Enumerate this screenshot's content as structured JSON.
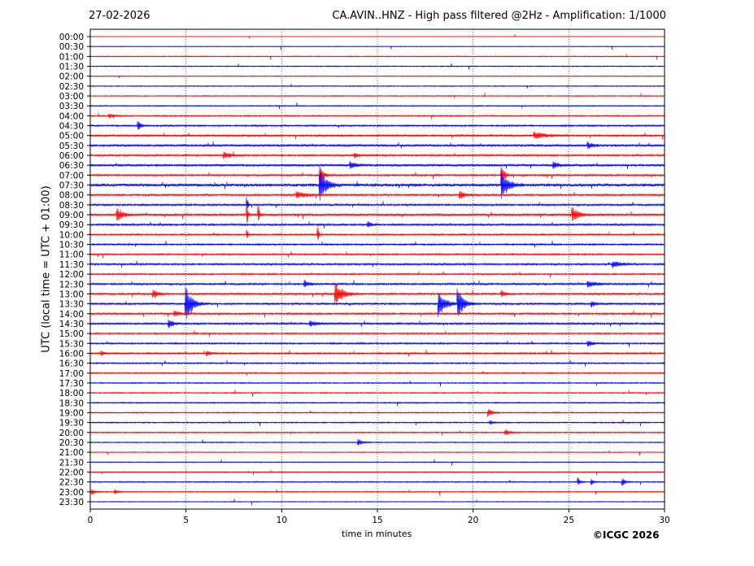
{
  "header": {
    "date": "27-02-2026",
    "title": "CA.AVIN..HNZ - High pass filtered @2Hz - Amplification: 1/1000"
  },
  "footer": {
    "copyright": "©ICGC 2026"
  },
  "chart_data": {
    "type": "line",
    "title": "CA.AVIN..HNZ - High pass filtered @2Hz - Amplification: 1/1000",
    "xlabel": "time in minutes",
    "ylabel": "UTC (local time = UTC + 01:00)",
    "xlim": [
      0,
      30
    ],
    "xticks": [
      "0",
      "5",
      "10",
      "15",
      "20",
      "25",
      "30"
    ],
    "grid": "vertical dotted at 5-minute intervals",
    "colors": [
      "#ff0000",
      "#0000ff"
    ],
    "traces": [
      "00:00",
      "00:30",
      "01:00",
      "01:30",
      "02:00",
      "02:30",
      "03:00",
      "03:30",
      "04:00",
      "04:30",
      "05:00",
      "05:30",
      "06:00",
      "06:30",
      "07:00",
      "07:30",
      "08:00",
      "08:30",
      "09:00",
      "09:30",
      "10:00",
      "10:30",
      "11:00",
      "11:30",
      "12:00",
      "12:30",
      "13:00",
      "13:30",
      "14:00",
      "14:30",
      "15:00",
      "15:30",
      "16:00",
      "16:30",
      "17:00",
      "17:30",
      "18:00",
      "18:30",
      "19:00",
      "19:30",
      "20:00",
      "20:30",
      "21:00",
      "21:30",
      "22:00",
      "22:30",
      "23:00",
      "23:30"
    ],
    "noise_level": [
      0.2,
      0.3,
      0.5,
      0.5,
      0.4,
      0.5,
      0.5,
      0.5,
      0.6,
      0.8,
      1,
      1.2,
      1,
      1.2,
      1,
      1.5,
      1,
      1,
      1.2,
      1,
      0.8,
      0.8,
      0.8,
      1,
      0.8,
      1,
      1,
      1,
      1,
      1,
      0.8,
      0.8,
      0.8,
      0.7,
      0.7,
      0.6,
      0.6,
      0.6,
      0.6,
      0.6,
      0.6,
      0.5,
      0.4,
      0.4,
      0.5,
      0.6,
      0.5,
      0.4
    ],
    "events": [
      {
        "trace": "04:00",
        "minute": 1.0,
        "amplitude": 3,
        "duration": 0.5
      },
      {
        "trace": "04:30",
        "minute": 2.5,
        "amplitude": 6,
        "duration": 0.3
      },
      {
        "trace": "05:00",
        "minute": 23.2,
        "amplitude": 5,
        "duration": 1
      },
      {
        "trace": "05:30",
        "minute": 26.0,
        "amplitude": 5,
        "duration": 0.4
      },
      {
        "trace": "06:00",
        "minute": 7.0,
        "amplitude": 4,
        "duration": 0.6
      },
      {
        "trace": "06:00",
        "minute": 13.8,
        "amplitude": 3,
        "duration": 0.4
      },
      {
        "trace": "06:30",
        "minute": 13.6,
        "amplitude": 5,
        "duration": 0.5
      },
      {
        "trace": "06:30",
        "minute": 24.2,
        "amplitude": 4,
        "duration": 0.5
      },
      {
        "trace": "07:00",
        "minute": 12.0,
        "amplitude": 12,
        "duration": 0.3
      },
      {
        "trace": "07:00",
        "minute": 21.5,
        "amplitude": 10,
        "duration": 0.3
      },
      {
        "trace": "07:30",
        "minute": 12.0,
        "amplitude": 20,
        "duration": 0.6
      },
      {
        "trace": "07:30",
        "minute": 21.5,
        "amplitude": 18,
        "duration": 0.6
      },
      {
        "trace": "08:00",
        "minute": 10.8,
        "amplitude": 4,
        "duration": 1
      },
      {
        "trace": "08:00",
        "minute": 19.3,
        "amplitude": 6,
        "duration": 0.5
      },
      {
        "trace": "08:30",
        "minute": 8.2,
        "amplitude": 10,
        "duration": 0.1
      },
      {
        "trace": "09:00",
        "minute": 1.4,
        "amplitude": 8,
        "duration": 0.6
      },
      {
        "trace": "09:00",
        "minute": 25.2,
        "amplitude": 9,
        "duration": 0.6
      },
      {
        "trace": "09:00",
        "minute": 8.2,
        "amplitude": 14,
        "duration": 0.1
      },
      {
        "trace": "09:00",
        "minute": 8.8,
        "amplitude": 12,
        "duration": 0.1
      },
      {
        "trace": "09:30",
        "minute": 14.5,
        "amplitude": 4,
        "duration": 0.4
      },
      {
        "trace": "10:00",
        "minute": 11.9,
        "amplitude": 10,
        "duration": 0.1
      },
      {
        "trace": "10:00",
        "minute": 8.2,
        "amplitude": 6,
        "duration": 0.1
      },
      {
        "trace": "11:30",
        "minute": 27.3,
        "amplitude": 4,
        "duration": 0.8
      },
      {
        "trace": "12:30",
        "minute": 11.2,
        "amplitude": 5,
        "duration": 0.4
      },
      {
        "trace": "12:30",
        "minute": 26.0,
        "amplitude": 4,
        "duration": 0.8
      },
      {
        "trace": "13:00",
        "minute": 12.8,
        "amplitude": 16,
        "duration": 0.7
      },
      {
        "trace": "13:00",
        "minute": 3.3,
        "amplitude": 5,
        "duration": 0.5
      },
      {
        "trace": "13:00",
        "minute": 21.5,
        "amplitude": 4,
        "duration": 0.4
      },
      {
        "trace": "13:30",
        "minute": 5.0,
        "amplitude": 22,
        "duration": 0.6
      },
      {
        "trace": "13:30",
        "minute": 18.2,
        "amplitude": 18,
        "duration": 0.6
      },
      {
        "trace": "13:30",
        "minute": 19.2,
        "amplitude": 18,
        "duration": 0.6
      },
      {
        "trace": "13:30",
        "minute": 26.2,
        "amplitude": 4,
        "duration": 0.4
      },
      {
        "trace": "14:00",
        "minute": 4.4,
        "amplitude": 4,
        "duration": 0.5
      },
      {
        "trace": "14:30",
        "minute": 4.1,
        "amplitude": 5,
        "duration": 0.5
      },
      {
        "trace": "14:30",
        "minute": 11.5,
        "amplitude": 3,
        "duration": 0.8
      },
      {
        "trace": "15:30",
        "minute": 26.0,
        "amplitude": 4,
        "duration": 0.5
      },
      {
        "trace": "16:00",
        "minute": 0.6,
        "amplitude": 3,
        "duration": 0.3
      },
      {
        "trace": "16:00",
        "minute": 6.1,
        "amplitude": 3,
        "duration": 0.4
      },
      {
        "trace": "19:00",
        "minute": 20.8,
        "amplitude": 5,
        "duration": 0.4
      },
      {
        "trace": "19:30",
        "minute": 20.9,
        "amplitude": 3,
        "duration": 0.3
      },
      {
        "trace": "20:00",
        "minute": 21.7,
        "amplitude": 4,
        "duration": 0.4
      },
      {
        "trace": "20:30",
        "minute": 14.0,
        "amplitude": 5,
        "duration": 0.4
      },
      {
        "trace": "22:30",
        "minute": 25.5,
        "amplitude": 5,
        "duration": 0.2
      },
      {
        "trace": "22:30",
        "minute": 26.2,
        "amplitude": 4,
        "duration": 0.2
      },
      {
        "trace": "22:30",
        "minute": 27.8,
        "amplitude": 5,
        "duration": 0.3
      },
      {
        "trace": "23:00",
        "minute": 0.1,
        "amplitude": 4,
        "duration": 0.3
      },
      {
        "trace": "23:00",
        "minute": 1.3,
        "amplitude": 3,
        "duration": 0.3
      }
    ]
  }
}
